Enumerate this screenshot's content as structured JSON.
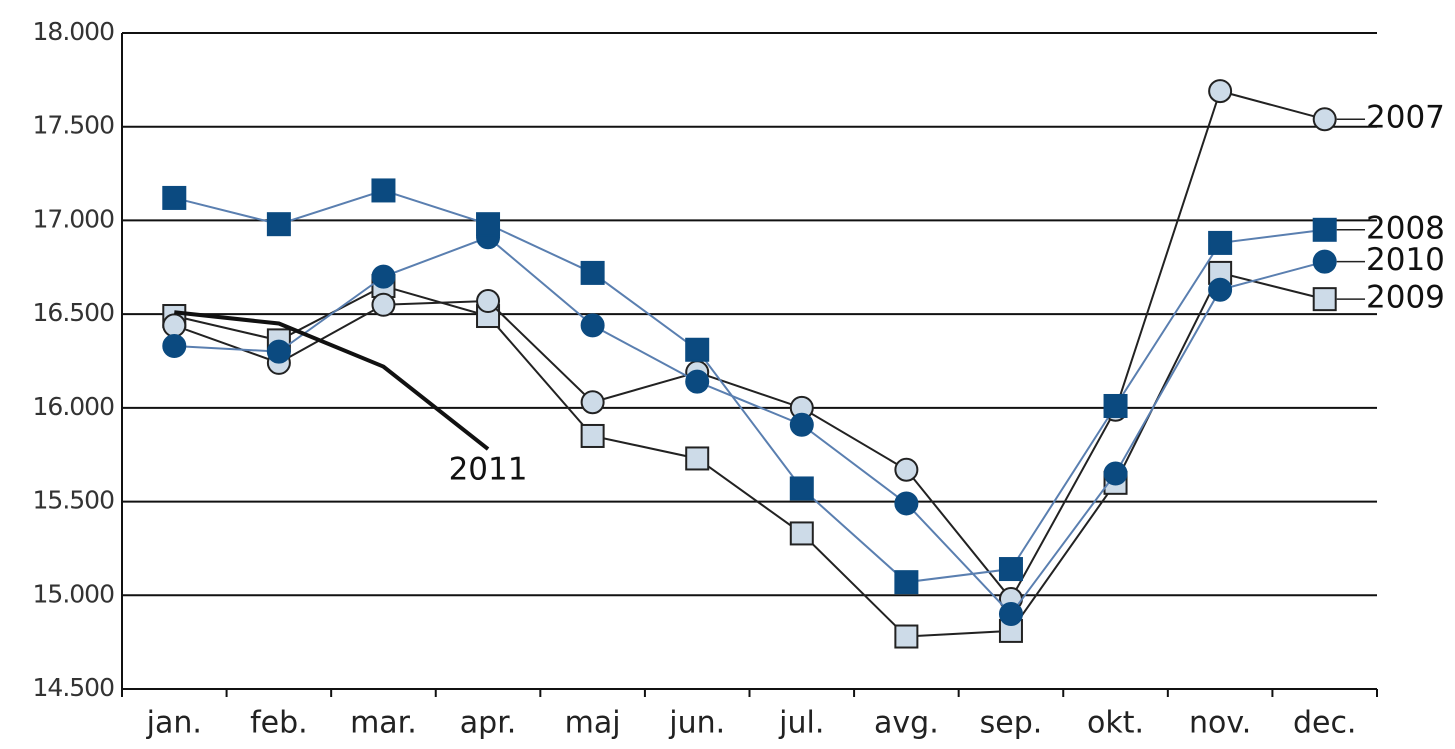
{
  "chart_data": {
    "type": "line",
    "categories": [
      "jan.",
      "feb.",
      "mar.",
      "apr.",
      "maj",
      "jun.",
      "jul.",
      "avg.",
      "sep.",
      "okt.",
      "nov.",
      "dec."
    ],
    "ylim": [
      14500,
      18000
    ],
    "yticks": [
      {
        "value": 14500,
        "label": "14.500"
      },
      {
        "value": 15000,
        "label": "15.000"
      },
      {
        "value": 15500,
        "label": "15.500"
      },
      {
        "value": 16000,
        "label": "16.000"
      },
      {
        "value": 16500,
        "label": "16.500"
      },
      {
        "value": 17000,
        "label": "17.000"
      },
      {
        "value": 17500,
        "label": "17.500"
      },
      {
        "value": 18000,
        "label": "18.000"
      }
    ],
    "grid": true,
    "series": [
      {
        "name": "2009",
        "marker": "square",
        "color": "#cddbe8",
        "line_color": "#222222",
        "values": [
          16490,
          16360,
          16650,
          16490,
          15850,
          15730,
          15330,
          14780,
          14810,
          15600,
          16720,
          16580
        ]
      },
      {
        "name": "2007",
        "marker": "circle",
        "color": "#cddbe8",
        "line_color": "#222222",
        "values": [
          16440,
          16240,
          16550,
          16570,
          16030,
          16190,
          16000,
          15670,
          14980,
          15990,
          17690,
          17540
        ]
      },
      {
        "name": "2010",
        "marker": "circle",
        "color": "#0b4a80",
        "line_color": "#5a7fb0",
        "values": [
          16330,
          16300,
          16700,
          16910,
          16440,
          16140,
          15910,
          15490,
          14900,
          15650,
          16630,
          16780
        ]
      },
      {
        "name": "2008",
        "marker": "square",
        "color": "#0b4a80",
        "line_color": "#5a7fb0",
        "values": [
          17120,
          16980,
          17160,
          16980,
          16720,
          16310,
          15570,
          15070,
          15140,
          16010,
          16880,
          16950
        ]
      },
      {
        "name": "2011",
        "marker": "none",
        "color": "#111111",
        "line_color": "#111111",
        "values": [
          16510,
          16450,
          16220,
          15780,
          null,
          null,
          null,
          null,
          null,
          null,
          null,
          null
        ]
      }
    ]
  }
}
